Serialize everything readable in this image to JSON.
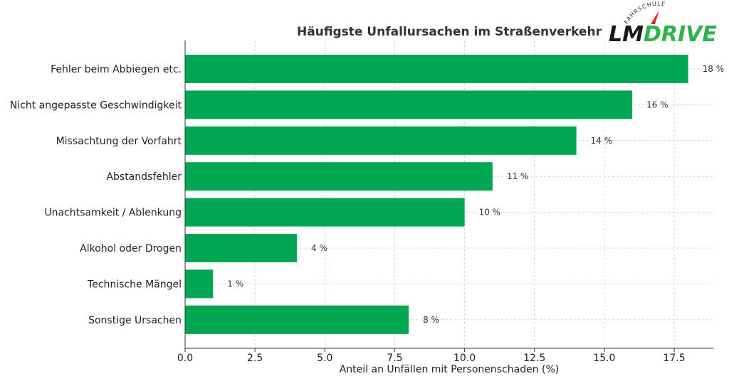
{
  "logo": {
    "arc_text": "FAHRSCHULE",
    "lm": "LM",
    "drive": "DRIVE",
    "lm_color": "#1a1a1a",
    "drive_color": "#2fb24a",
    "needle_color": "#d9262b"
  },
  "chart_data": {
    "type": "bar",
    "orientation": "horizontal",
    "title": "Häufigste Unfallursachen im Straßenverkehr",
    "xlabel": "Anteil an Unfällen mit Personenschaden (%)",
    "ylabel": "",
    "categories": [
      "Fehler beim Abbiegen etc.",
      "Nicht angepasste Geschwindigkeit",
      "Missachtung der Vorfahrt",
      "Abstandsfehler",
      "Unachtsamkeit / Ablenkung",
      "Alkohol oder Drogen",
      "Technische Mängel",
      "Sonstige Ursachen"
    ],
    "values": [
      18,
      16,
      14,
      11,
      10,
      4,
      1,
      8
    ],
    "data_labels": [
      "18 %",
      "16 %",
      "14 %",
      "11 %",
      "10 %",
      "4 %",
      "1 %",
      "8 %"
    ],
    "xlim": [
      0,
      18.9
    ],
    "xticks": [
      0,
      2.5,
      5,
      7.5,
      10,
      12.5,
      15,
      17.5
    ],
    "xtick_labels": [
      "0.0",
      "2.5",
      "5.0",
      "7.5",
      "10.0",
      "12.5",
      "15.0",
      "17.5"
    ],
    "grid": true,
    "legend": "none",
    "bar_color": "#00a651"
  }
}
